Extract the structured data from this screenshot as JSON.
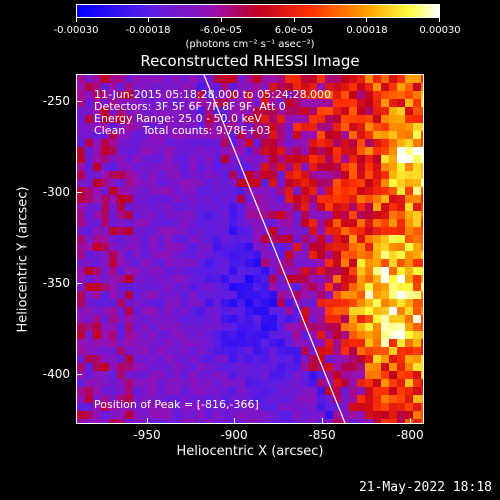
{
  "colorbar": {
    "ticks": [
      "-0.00030",
      "-0.00018",
      "-6.0e-05",
      "6.0e-05",
      "0.00018",
      "0.00030"
    ],
    "units": "(photons cm⁻² s⁻¹ asec⁻²)",
    "colors": [
      "#0000ff",
      "#6b00d6",
      "#aa00aa",
      "#ff0000",
      "#ff8800",
      "#ffff00",
      "#ffffff"
    ]
  },
  "title": "Reconstructed RHESSI Image",
  "info": {
    "time": "11-Jun-2015 05:18:28.000 to 05:24:28.000",
    "detectors": "Detectors: 3F 5F 6F 7F 8F 9F, Att 0",
    "energy": "Energy Range: 25.0 - 50.0 keV",
    "method": "Clean     Total counts: 9.78E+03",
    "peak": "Position of Peak = [-816,-366]"
  },
  "axes": {
    "xlabel": "Heliocentric X (arcsec)",
    "ylabel": "Heliocentric Y (arcsec)",
    "xticks": [
      "-950",
      "-900",
      "-850",
      "-800"
    ],
    "yticks": [
      "-250",
      "-300",
      "-350",
      "-400"
    ]
  },
  "timestamp": "21-May-2022 18:18"
}
